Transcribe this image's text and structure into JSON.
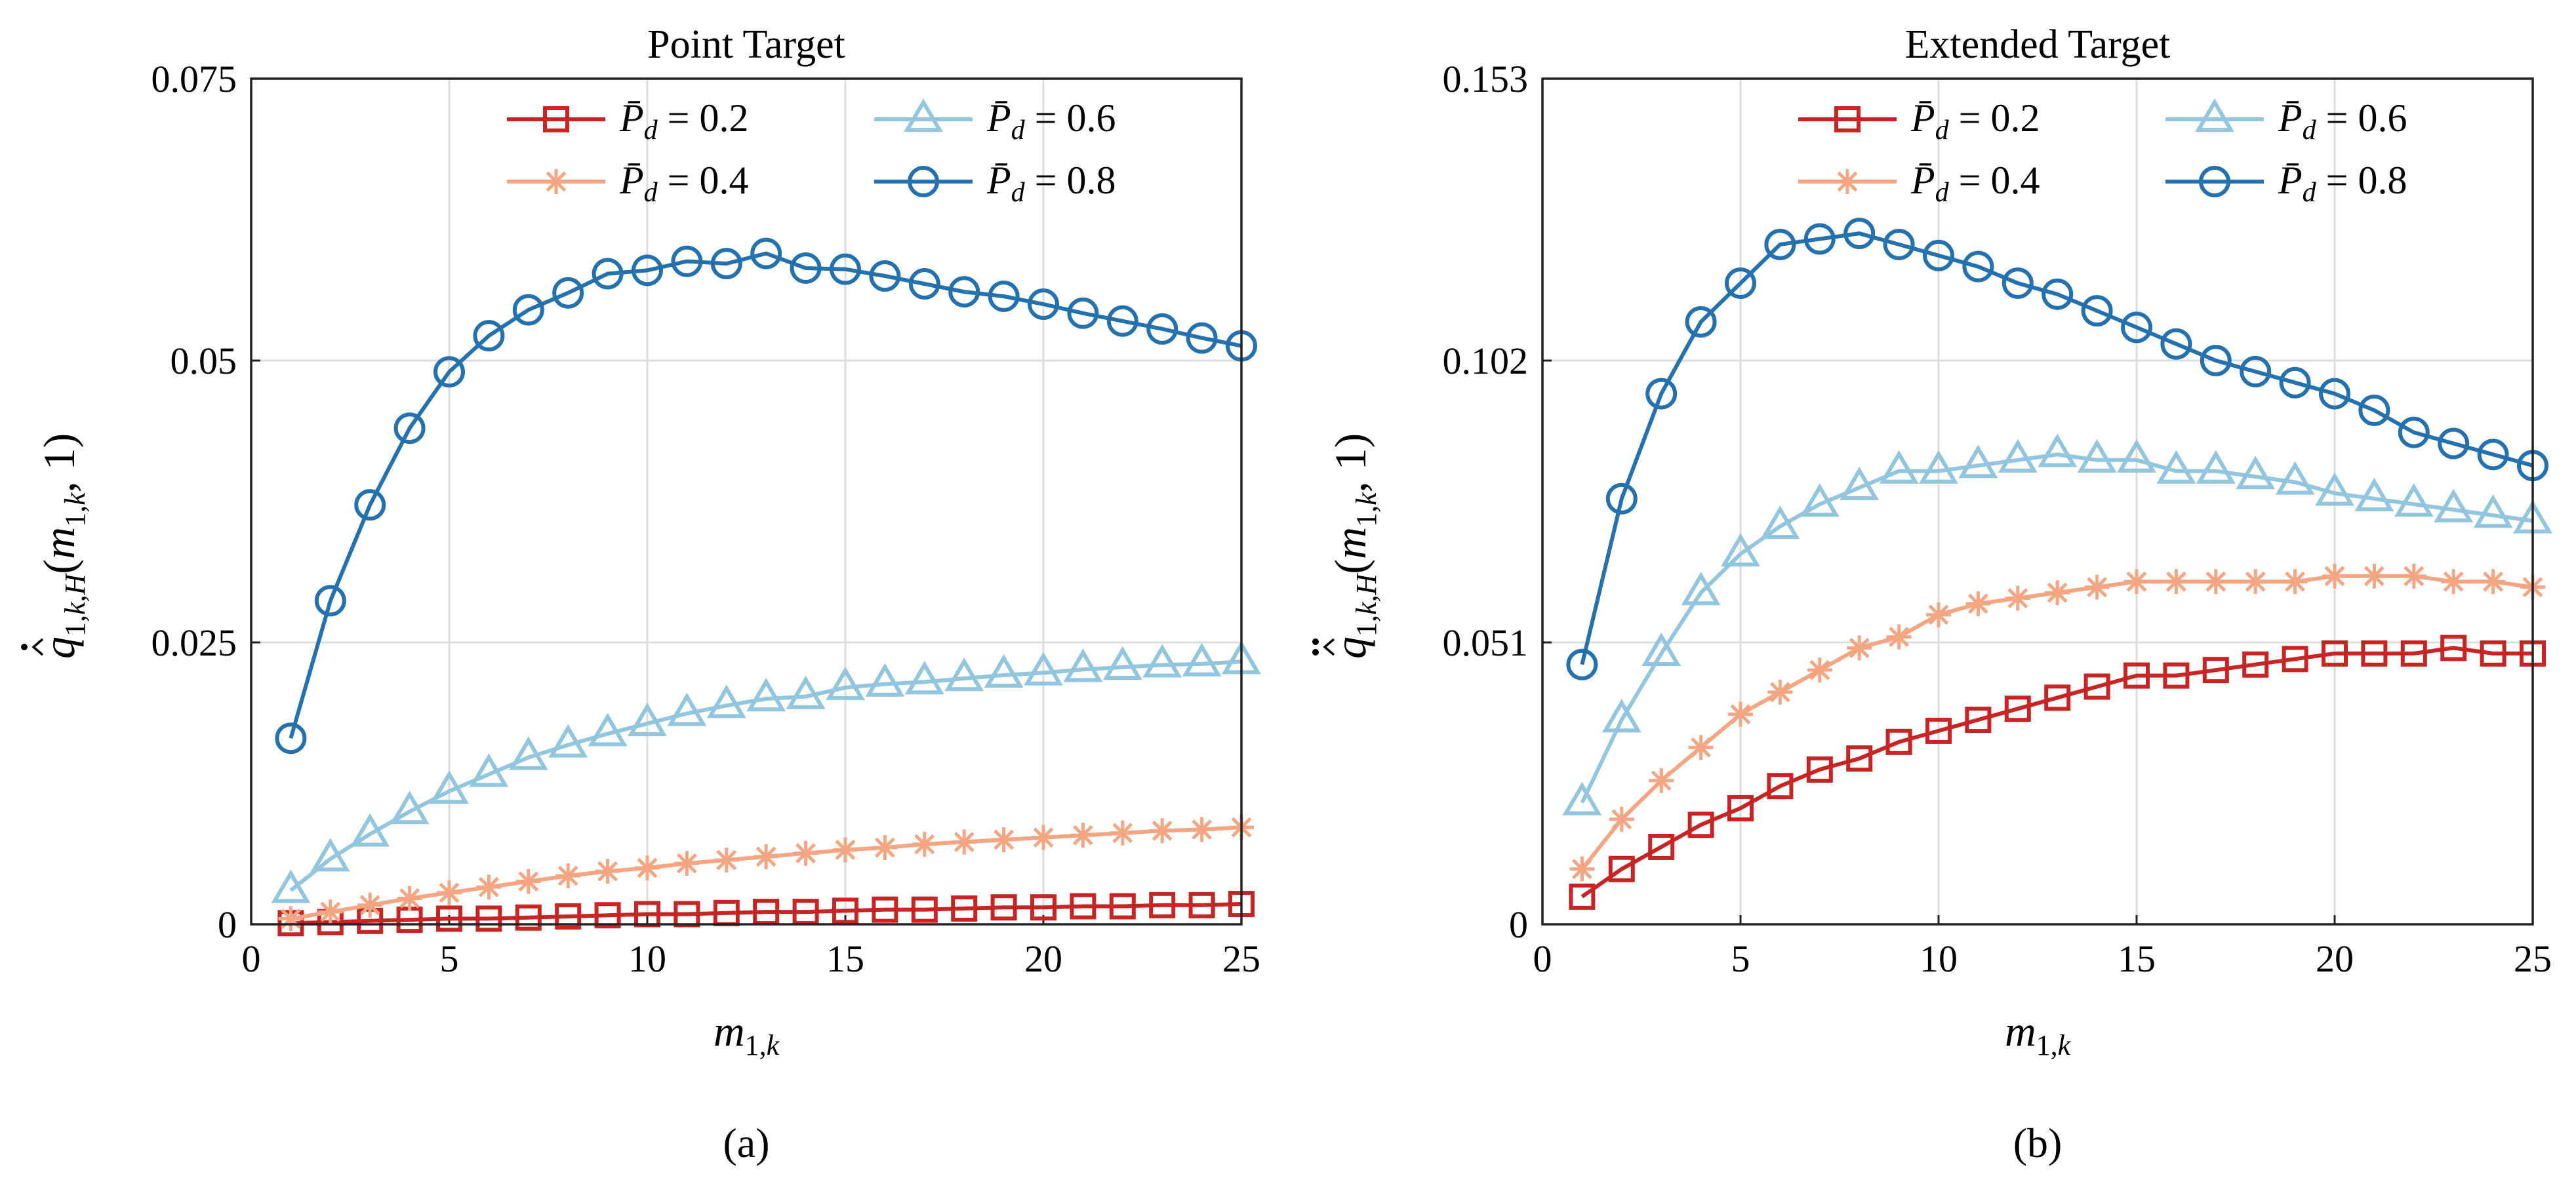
{
  "chart_data": [
    {
      "type": "line",
      "title": "Point Target",
      "xlabel": "m_{1,k}",
      "ylabel": "q̂̇_{1,k,H}(m_{1,k}, 1)",
      "subfigure": "(a)",
      "xlim": [
        0,
        25
      ],
      "ylim": [
        0,
        0.075
      ],
      "xticks": [
        "0",
        "5",
        "10",
        "15",
        "20",
        "25"
      ],
      "yticks": [
        "0",
        "0.025",
        "0.05",
        "0.075"
      ],
      "grid": true,
      "legend_position": "top-right",
      "x": [
        1,
        2,
        3,
        4,
        5,
        6,
        7,
        8,
        9,
        10,
        11,
        12,
        13,
        14,
        15,
        16,
        17,
        18,
        19,
        20,
        21,
        22,
        23,
        24,
        25
      ],
      "series": [
        {
          "name": "P̄_d = 0.2",
          "color": "#c82423",
          "marker": "square",
          "values": [
            0.0001,
            0.0002,
            0.0003,
            0.0004,
            0.0005,
            0.0005,
            0.0006,
            0.0007,
            0.0008,
            0.0009,
            0.0009,
            0.001,
            0.0011,
            0.0011,
            0.0012,
            0.0013,
            0.0013,
            0.0014,
            0.0015,
            0.0015,
            0.0016,
            0.0016,
            0.0017,
            0.0017,
            0.0018
          ]
        },
        {
          "name": "P̄_d = 0.4",
          "color": "#f4a582",
          "marker": "asterisk",
          "values": [
            0.0005,
            0.0011,
            0.0017,
            0.0023,
            0.0028,
            0.0033,
            0.0038,
            0.0043,
            0.0047,
            0.005,
            0.0054,
            0.0057,
            0.006,
            0.0063,
            0.0066,
            0.0068,
            0.0071,
            0.0073,
            0.0075,
            0.0077,
            0.0079,
            0.0081,
            0.0083,
            0.0084,
            0.0086
          ]
        },
        {
          "name": "P̄_d = 0.6",
          "color": "#92c5de",
          "marker": "triangle",
          "values": [
            0.003,
            0.0058,
            0.008,
            0.01,
            0.0118,
            0.0133,
            0.0148,
            0.0159,
            0.0169,
            0.0178,
            0.0187,
            0.0194,
            0.02,
            0.0202,
            0.021,
            0.0213,
            0.0215,
            0.0218,
            0.0221,
            0.0223,
            0.0226,
            0.0228,
            0.023,
            0.0231,
            0.0233
          ]
        },
        {
          "name": "P̄_d = 0.8",
          "color": "#2471b0",
          "marker": "circle",
          "values": [
            0.0165,
            0.0287,
            0.0372,
            0.044,
            0.049,
            0.0522,
            0.0545,
            0.056,
            0.0577,
            0.058,
            0.0588,
            0.0586,
            0.0595,
            0.0582,
            0.0581,
            0.0575,
            0.0568,
            0.0561,
            0.0557,
            0.055,
            0.0542,
            0.0535,
            0.0528,
            0.052,
            0.0513
          ]
        }
      ]
    },
    {
      "type": "line",
      "title": "Extended Target",
      "xlabel": "m_{1,k}",
      "ylabel": "q̂̈_{1,k,H}(m_{1,k}, 1)",
      "subfigure": "(b)",
      "xlim": [
        0,
        25
      ],
      "ylim": [
        0,
        0.153
      ],
      "xticks": [
        "0",
        "5",
        "10",
        "15",
        "20",
        "25"
      ],
      "yticks": [
        "0",
        "0.051",
        "0.102",
        "0.153"
      ],
      "grid": true,
      "legend_position": "top-right",
      "x": [
        1,
        2,
        3,
        4,
        5,
        6,
        7,
        8,
        9,
        10,
        11,
        12,
        13,
        14,
        15,
        16,
        17,
        18,
        19,
        20,
        21,
        22,
        23,
        24,
        25
      ],
      "series": [
        {
          "name": "P̄_d = 0.2",
          "color": "#c82423",
          "marker": "square",
          "values": [
            0.005,
            0.01,
            0.014,
            0.018,
            0.021,
            0.025,
            0.028,
            0.03,
            0.033,
            0.035,
            0.037,
            0.039,
            0.041,
            0.043,
            0.045,
            0.045,
            0.046,
            0.047,
            0.048,
            0.049,
            0.049,
            0.049,
            0.05,
            0.049,
            0.049
          ]
        },
        {
          "name": "P̄_d = 0.4",
          "color": "#f4a582",
          "marker": "asterisk",
          "values": [
            0.01,
            0.019,
            0.026,
            0.032,
            0.038,
            0.042,
            0.046,
            0.05,
            0.052,
            0.056,
            0.058,
            0.059,
            0.06,
            0.061,
            0.062,
            0.062,
            0.062,
            0.062,
            0.062,
            0.063,
            0.063,
            0.063,
            0.062,
            0.062,
            0.061
          ]
        },
        {
          "name": "P̄_d = 0.6",
          "color": "#92c5de",
          "marker": "triangle",
          "values": [
            0.022,
            0.037,
            0.049,
            0.06,
            0.067,
            0.072,
            0.076,
            0.079,
            0.082,
            0.082,
            0.083,
            0.084,
            0.085,
            0.084,
            0.084,
            0.082,
            0.082,
            0.081,
            0.08,
            0.078,
            0.077,
            0.076,
            0.075,
            0.074,
            0.073
          ]
        },
        {
          "name": "P̄_d = 0.8",
          "color": "#2471b0",
          "marker": "circle",
          "values": [
            0.047,
            0.077,
            0.096,
            0.109,
            0.116,
            0.123,
            0.124,
            0.125,
            0.123,
            0.121,
            0.119,
            0.116,
            0.114,
            0.111,
            0.108,
            0.105,
            0.102,
            0.1,
            0.098,
            0.096,
            0.093,
            0.089,
            0.087,
            0.085,
            0.083
          ]
        }
      ]
    }
  ]
}
